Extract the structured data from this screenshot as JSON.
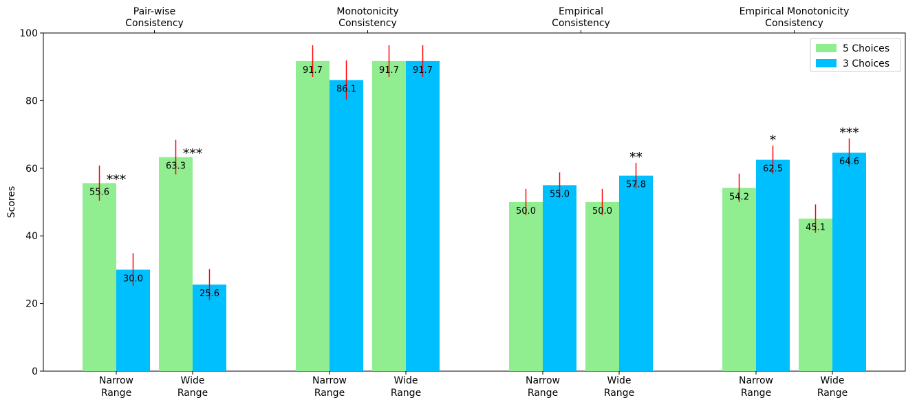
{
  "chart_data": {
    "type": "bar",
    "ylabel": "Scores",
    "ylim": [
      0,
      100
    ],
    "yticks": [
      "0",
      "20",
      "40",
      "60",
      "80",
      "100"
    ],
    "colors": {
      "5 Choices": "#90ee90",
      "3 Choices": "#00bfff",
      "error": "#ff0000"
    },
    "legend": {
      "position": "top-right",
      "entries": [
        "5 Choices",
        "3 Choices"
      ]
    },
    "groups": [
      {
        "title_line1": "Pair-wise",
        "title_line2": "Consistency",
        "subgroups": [
          {
            "label_line1": "Narrow",
            "label_line2": "Range",
            "bars": [
              {
                "series": "5 Choices",
                "value": 55.6,
                "label": "55.6",
                "err": [
                  50.4,
                  60.8
                ],
                "sig": "***"
              },
              {
                "series": "3 Choices",
                "value": 30.0,
                "label": "30.0",
                "err": [
                  25.2,
                  34.9
                ],
                "sig": ""
              }
            ]
          },
          {
            "label_line1": "Wide",
            "label_line2": "Range",
            "bars": [
              {
                "series": "5 Choices",
                "value": 63.3,
                "label": "63.3",
                "err": [
                  58.2,
                  68.4
                ],
                "sig": "***"
              },
              {
                "series": "3 Choices",
                "value": 25.6,
                "label": "25.6",
                "err": [
                  21.0,
                  30.2
                ],
                "sig": ""
              }
            ]
          }
        ]
      },
      {
        "title_line1": "Monotonicity",
        "title_line2": "Consistency",
        "subgroups": [
          {
            "label_line1": "Narrow",
            "label_line2": "Range",
            "bars": [
              {
                "series": "5 Choices",
                "value": 91.7,
                "label": "91.7",
                "err": [
                  87.0,
                  96.4
                ],
                "sig": ""
              },
              {
                "series": "3 Choices",
                "value": 86.1,
                "label": "86.1",
                "err": [
                  80.3,
                  91.9
                ],
                "sig": ""
              }
            ]
          },
          {
            "label_line1": "Wide",
            "label_line2": "Range",
            "bars": [
              {
                "series": "5 Choices",
                "value": 91.7,
                "label": "91.7",
                "err": [
                  87.0,
                  96.4
                ],
                "sig": ""
              },
              {
                "series": "3 Choices",
                "value": 91.7,
                "label": "91.7",
                "err": [
                  87.0,
                  96.4
                ],
                "sig": ""
              }
            ]
          }
        ]
      },
      {
        "title_line1": "Empirical",
        "title_line2": "Consistency",
        "subgroups": [
          {
            "label_line1": "Narrow",
            "label_line2": "Range",
            "bars": [
              {
                "series": "5 Choices",
                "value": 50.0,
                "label": "50.0",
                "err": [
                  46.1,
                  53.9
                ],
                "sig": ""
              },
              {
                "series": "3 Choices",
                "value": 55.0,
                "label": "55.0",
                "err": [
                  51.2,
                  58.8
                ],
                "sig": ""
              }
            ]
          },
          {
            "label_line1": "Wide",
            "label_line2": "Range",
            "bars": [
              {
                "series": "5 Choices",
                "value": 50.0,
                "label": "50.0",
                "err": [
                  46.1,
                  53.9
                ],
                "sig": ""
              },
              {
                "series": "3 Choices",
                "value": 57.8,
                "label": "57.8",
                "err": [
                  54.0,
                  61.6
                ],
                "sig": "**"
              }
            ]
          }
        ]
      },
      {
        "title_line1": "Empirical Monotonicity",
        "title_line2": "Consistency",
        "subgroups": [
          {
            "label_line1": "Narrow",
            "label_line2": "Range",
            "bars": [
              {
                "series": "5 Choices",
                "value": 54.2,
                "label": "54.2",
                "err": [
                  50.0,
                  58.4
                ],
                "sig": ""
              },
              {
                "series": "3 Choices",
                "value": 62.5,
                "label": "62.5",
                "err": [
                  58.3,
                  66.7
                ],
                "sig": "*"
              }
            ]
          },
          {
            "label_line1": "Wide",
            "label_line2": "Range",
            "bars": [
              {
                "series": "5 Choices",
                "value": 45.1,
                "label": "45.1",
                "err": [
                  40.9,
                  49.3
                ],
                "sig": ""
              },
              {
                "series": "3 Choices",
                "value": 64.6,
                "label": "64.6",
                "err": [
                  60.4,
                  68.8
                ],
                "sig": "***"
              }
            ]
          }
        ]
      }
    ]
  }
}
